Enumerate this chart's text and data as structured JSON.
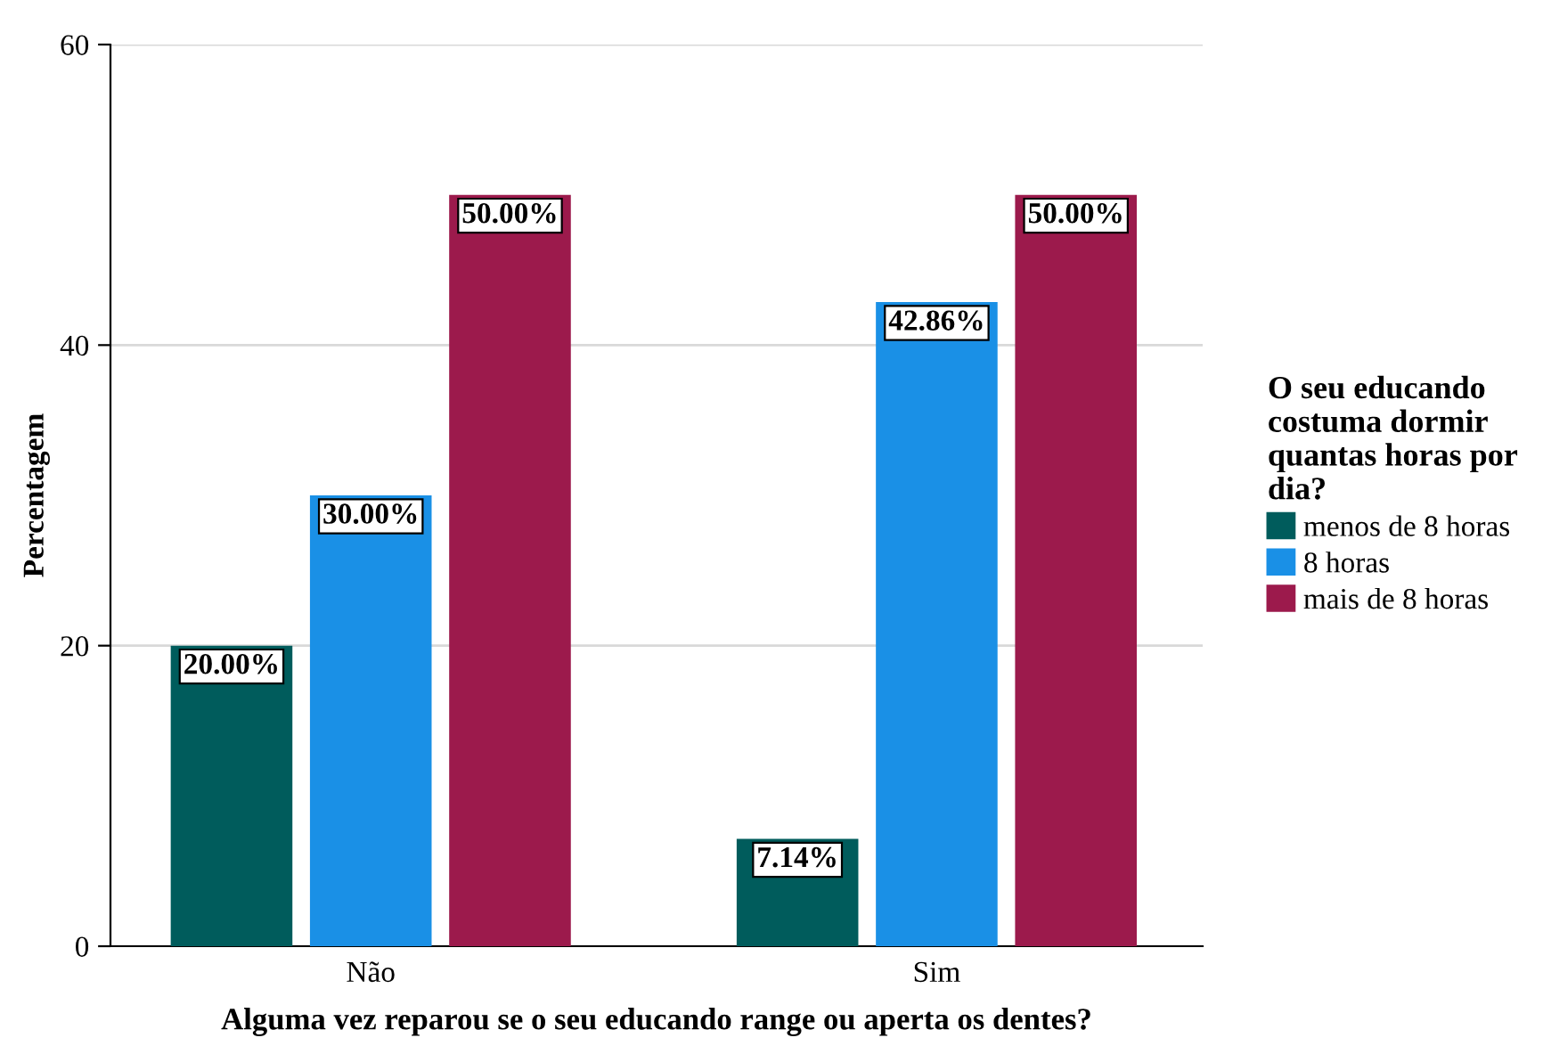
{
  "chart_data": {
    "type": "bar",
    "xlabel": "Alguma vez reparou se o seu educando range ou aperta os dentes?",
    "ylabel": "Percentagem",
    "legend_title": "O seu educando\ncostuma dormir\nquantas horas por\ndia?",
    "categories": [
      "Não",
      "Sim"
    ],
    "series": [
      {
        "name": "menos de 8 horas",
        "color": "#005c5c",
        "values": [
          20.0,
          7.14
        ],
        "value_labels": [
          "20.00%",
          "7.14%"
        ]
      },
      {
        "name": "8 horas",
        "color": "#1a90e6",
        "values": [
          30.0,
          42.86
        ],
        "value_labels": [
          "30.00%",
          "42.86%"
        ]
      },
      {
        "name": "mais de 8 horas",
        "color": "#9c1a4c",
        "values": [
          50.0,
          50.0
        ],
        "value_labels": [
          "50.00%",
          "50.00%"
        ]
      }
    ],
    "ylim": [
      0,
      60
    ],
    "yticks": [
      0,
      20,
      40,
      60
    ],
    "grid": "y",
    "legend": "right"
  }
}
